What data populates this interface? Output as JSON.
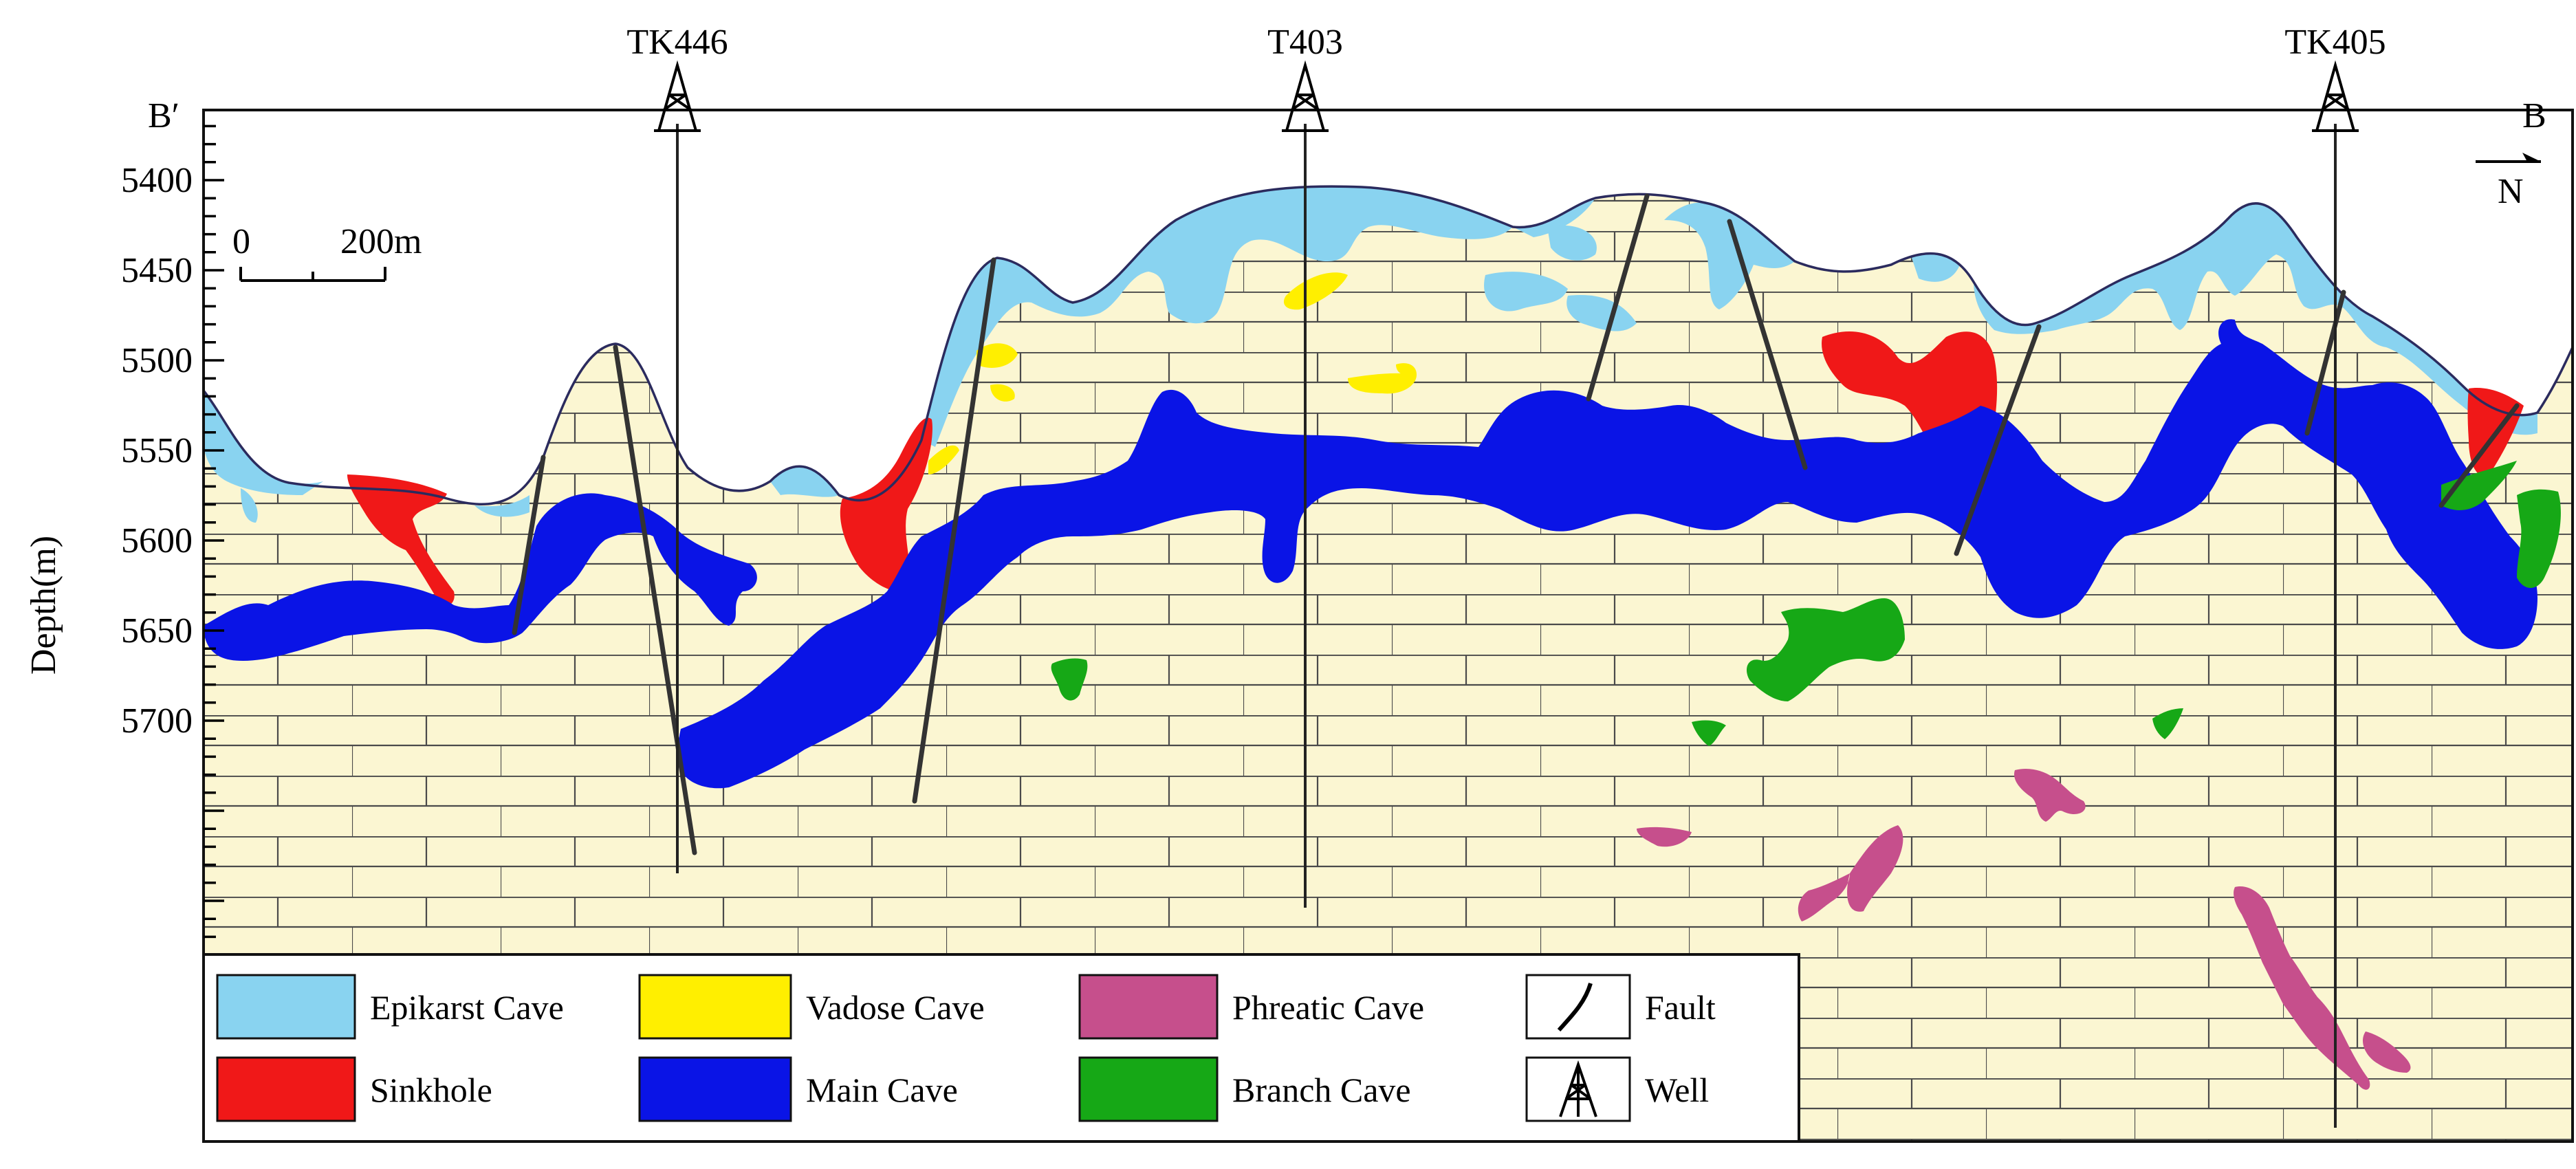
{
  "section": {
    "left_end_label": "B′",
    "right_end_label": "B",
    "north_label": "N",
    "depth_axis_label": "Depth(m)",
    "depth_ticks": [
      "5400",
      "5450",
      "5500",
      "5550",
      "5600",
      "5650",
      "5700"
    ]
  },
  "scale_bar": {
    "zero_label": "0",
    "distance_label": "200m"
  },
  "wells": [
    {
      "id": "TK446",
      "label": "TK446"
    },
    {
      "id": "T403",
      "label": "T403"
    },
    {
      "id": "TK405",
      "label": "TK405"
    }
  ],
  "legend": {
    "items": [
      {
        "key": "epikarst",
        "label": "Epikarst Cave",
        "color": "#89d3f0"
      },
      {
        "key": "vadose",
        "label": "Vadose Cave",
        "color": "#ffef00"
      },
      {
        "key": "phreatic",
        "label": "Phreatic Cave",
        "color": "#c64f8c"
      },
      {
        "key": "fault",
        "label": "Fault",
        "symbol": "fault-symbol"
      },
      {
        "key": "sinkhole",
        "label": "Sinkhole",
        "color": "#f01818"
      },
      {
        "key": "main",
        "label": "Main Cave",
        "color": "#0a14e6"
      },
      {
        "key": "branch",
        "label": "Branch Cave",
        "color": "#16a816"
      },
      {
        "key": "well",
        "label": "Well",
        "symbol": "derrick-symbol"
      }
    ]
  },
  "colors": {
    "limestone": "#fbf6d2",
    "brick_line": "#4a4a4a",
    "outline": "#2b2b5e"
  }
}
